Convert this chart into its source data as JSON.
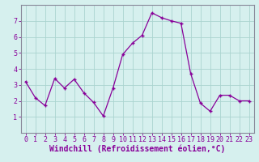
{
  "x": [
    0,
    1,
    2,
    3,
    4,
    5,
    6,
    7,
    8,
    9,
    10,
    11,
    12,
    13,
    14,
    15,
    16,
    17,
    18,
    19,
    20,
    21,
    22,
    23
  ],
  "y": [
    3.2,
    2.2,
    1.7,
    3.4,
    2.8,
    3.35,
    2.5,
    1.9,
    1.05,
    2.8,
    4.9,
    5.6,
    6.1,
    7.5,
    7.2,
    7.0,
    6.85,
    3.7,
    1.85,
    1.35,
    2.35,
    2.35,
    2.0,
    2.0
  ],
  "line_color": "#880099",
  "marker": "+",
  "marker_size": 3,
  "bg_color": "#d6f0ee",
  "grid_color": "#aad4d0",
  "xlabel": "Windchill (Refroidissement éolien,°C)",
  "xlabel_color": "#880099",
  "ylim": [
    0,
    8
  ],
  "xlim": [
    -0.5,
    23.5
  ],
  "yticks": [
    1,
    2,
    3,
    4,
    5,
    6,
    7
  ],
  "xticks": [
    0,
    1,
    2,
    3,
    4,
    5,
    6,
    7,
    8,
    9,
    10,
    11,
    12,
    13,
    14,
    15,
    16,
    17,
    18,
    19,
    20,
    21,
    22,
    23
  ],
  "tick_fontsize": 6,
  "xlabel_fontsize": 7,
  "spine_color": "#888899"
}
